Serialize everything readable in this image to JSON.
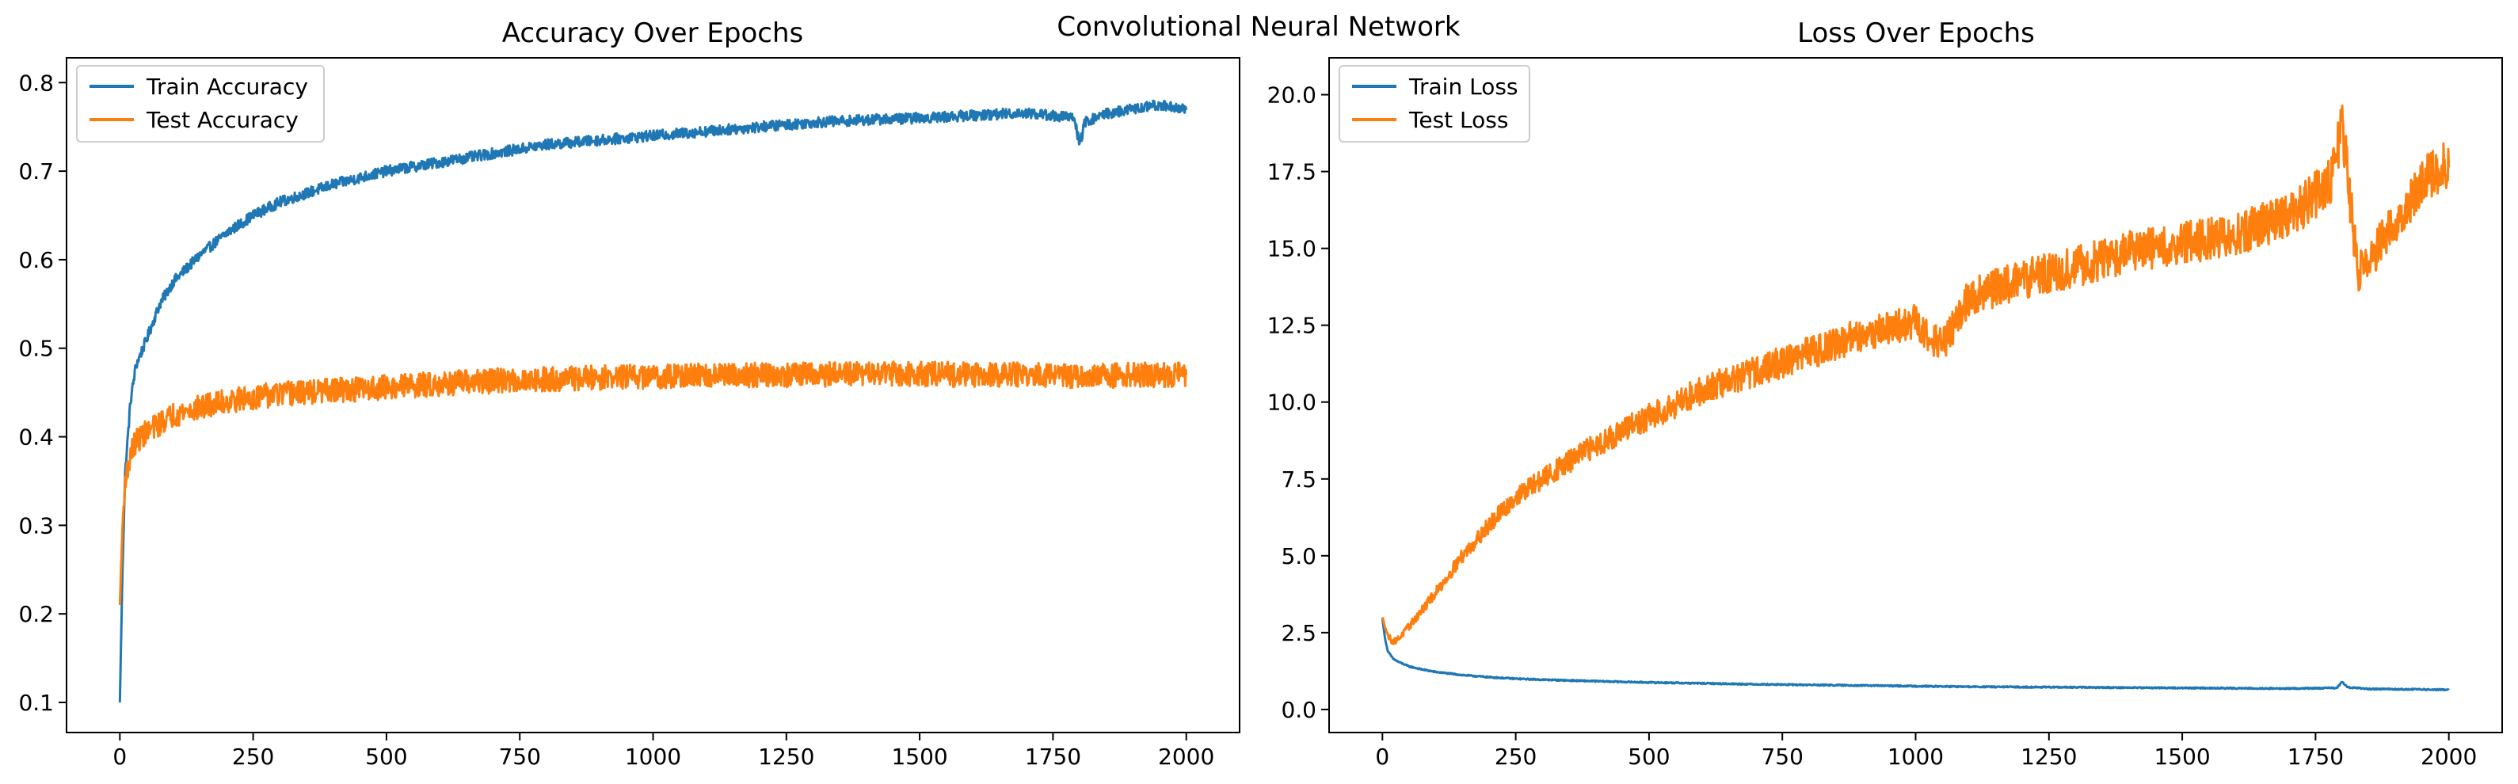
{
  "figure": {
    "suptitle": "Convolutional Neural Network",
    "colors": {
      "series_1": "#1f77b4",
      "series_2": "#ff7f0e",
      "axes": "#000000",
      "legend_frame": "#cccccc"
    }
  },
  "chart_data": [
    {
      "type": "line",
      "title": "Accuracy Over Epochs",
      "xlabel": "",
      "ylabel": "",
      "xlim": [
        -100,
        2100
      ],
      "ylim": [
        0.066,
        0.828
      ],
      "x_ticks": [
        0,
        250,
        500,
        750,
        1000,
        1250,
        1500,
        1750,
        2000
      ],
      "y_ticks": [
        0.1,
        0.2,
        0.3,
        0.4,
        0.5,
        0.6,
        0.7,
        0.8
      ],
      "y_tick_labels": [
        "0.1",
        "0.2",
        "0.3",
        "0.4",
        "0.5",
        "0.6",
        "0.7",
        "0.8"
      ],
      "grid": false,
      "legend_position": "upper-left",
      "series": [
        {
          "name": "Train Accuracy",
          "color": "#1f77b4",
          "x": [
            0,
            5,
            10,
            20,
            30,
            50,
            75,
            100,
            150,
            200,
            250,
            300,
            400,
            500,
            600,
            700,
            800,
            900,
            1000,
            1100,
            1200,
            1300,
            1400,
            1500,
            1600,
            1700,
            1790,
            1800,
            1810,
            1850,
            1900,
            1950,
            2000
          ],
          "y": [
            0.1,
            0.25,
            0.36,
            0.44,
            0.48,
            0.51,
            0.55,
            0.575,
            0.605,
            0.63,
            0.65,
            0.665,
            0.685,
            0.7,
            0.71,
            0.72,
            0.73,
            0.735,
            0.74,
            0.745,
            0.75,
            0.755,
            0.758,
            0.76,
            0.763,
            0.766,
            0.76,
            0.73,
            0.755,
            0.765,
            0.77,
            0.775,
            0.77
          ],
          "noise": 0.006
        },
        {
          "name": "Test Accuracy",
          "color": "#ff7f0e",
          "x": [
            0,
            5,
            10,
            20,
            30,
            50,
            75,
            100,
            150,
            200,
            250,
            300,
            400,
            500,
            600,
            700,
            800,
            900,
            1000,
            1100,
            1200,
            1300,
            1400,
            1500,
            1600,
            1700,
            1800,
            1900,
            2000
          ],
          "y": [
            0.21,
            0.3,
            0.35,
            0.38,
            0.395,
            0.405,
            0.415,
            0.425,
            0.433,
            0.44,
            0.445,
            0.448,
            0.452,
            0.456,
            0.46,
            0.463,
            0.465,
            0.467,
            0.468,
            0.469,
            0.47,
            0.47,
            0.471,
            0.471,
            0.47,
            0.47,
            0.468,
            0.47,
            0.47
          ],
          "noise": 0.014
        }
      ]
    },
    {
      "type": "line",
      "title": "Loss Over Epochs",
      "xlabel": "",
      "ylabel": "",
      "xlim": [
        -100,
        2100
      ],
      "ylim": [
        -0.75,
        21.2
      ],
      "x_ticks": [
        0,
        250,
        500,
        750,
        1000,
        1250,
        1500,
        1750,
        2000
      ],
      "y_ticks": [
        0.0,
        2.5,
        5.0,
        7.5,
        10.0,
        12.5,
        15.0,
        17.5,
        20.0
      ],
      "y_tick_labels": [
        "0.0",
        "2.5",
        "5.0",
        "7.5",
        "10.0",
        "12.5",
        "15.0",
        "17.5",
        "20.0"
      ],
      "grid": false,
      "legend_position": "upper-left",
      "series": [
        {
          "name": "Train Loss",
          "color": "#1f77b4",
          "x": [
            0,
            5,
            10,
            20,
            30,
            50,
            75,
            100,
            150,
            200,
            250,
            300,
            400,
            500,
            600,
            700,
            800,
            900,
            1000,
            1100,
            1200,
            1300,
            1400,
            1500,
            1600,
            1700,
            1790,
            1800,
            1810,
            1850,
            1900,
            1950,
            2000
          ],
          "y": [
            2.95,
            2.3,
            1.9,
            1.65,
            1.55,
            1.4,
            1.3,
            1.22,
            1.12,
            1.05,
            1.0,
            0.97,
            0.92,
            0.88,
            0.85,
            0.82,
            0.8,
            0.78,
            0.76,
            0.74,
            0.73,
            0.72,
            0.71,
            0.7,
            0.69,
            0.68,
            0.7,
            0.9,
            0.72,
            0.67,
            0.66,
            0.65,
            0.64
          ],
          "noise": 0.02
        },
        {
          "name": "Test Loss",
          "color": "#ff7f0e",
          "x": [
            0,
            10,
            20,
            30,
            50,
            100,
            150,
            200,
            250,
            300,
            400,
            500,
            600,
            700,
            800,
            900,
            1000,
            1050,
            1100,
            1200,
            1300,
            1400,
            1500,
            1600,
            1650,
            1700,
            1780,
            1800,
            1830,
            1900,
            1950,
            2000
          ],
          "y": [
            3.0,
            2.4,
            2.2,
            2.3,
            2.7,
            3.8,
            5.0,
            6.0,
            6.9,
            7.5,
            8.6,
            9.5,
            10.4,
            11.0,
            11.6,
            12.2,
            12.6,
            11.8,
            13.4,
            14.0,
            14.4,
            14.9,
            15.2,
            15.4,
            15.8,
            16.0,
            17.2,
            19.0,
            14.2,
            15.8,
            17.2,
            17.8
          ],
          "noise": 0.55
        }
      ]
    }
  ]
}
